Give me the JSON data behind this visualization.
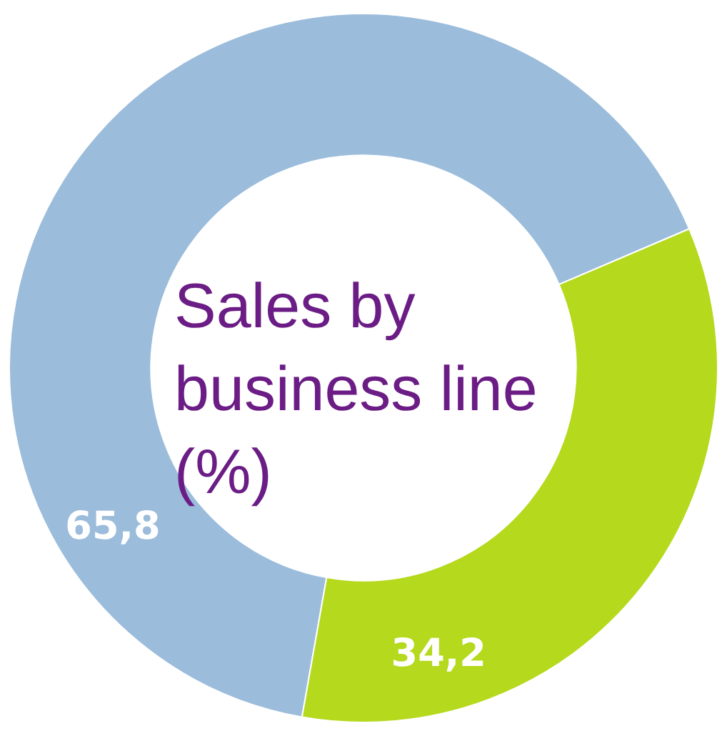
{
  "chart_data": {
    "type": "donut",
    "title": "Sales by business line (%)",
    "categories": [
      null,
      null
    ],
    "values": [
      65.8,
      34.2
    ],
    "value_labels": [
      "65,8",
      "34,2"
    ],
    "colors": [
      "#9bbcdb",
      "#b5d91c"
    ],
    "legend": false
  }
}
